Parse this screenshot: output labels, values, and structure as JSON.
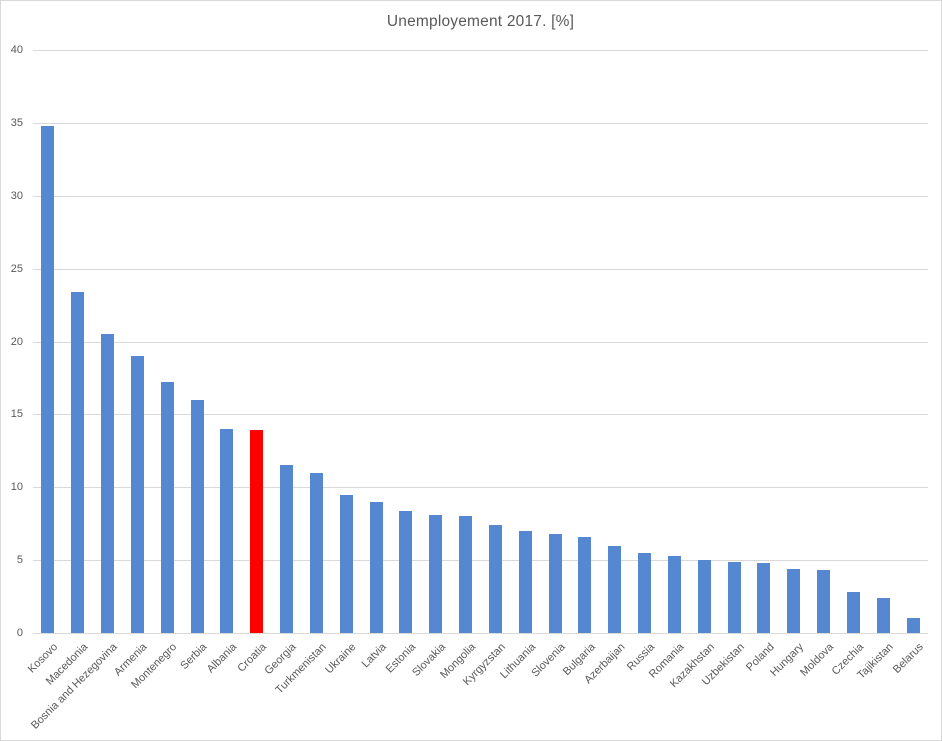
{
  "title": "Unemployement 2017. [%]",
  "chart_data": {
    "type": "bar",
    "title": "Unemployement 2017. [%]",
    "xlabel": "",
    "ylabel": "",
    "ylim": [
      0,
      40
    ],
    "yticks": [
      0,
      5,
      10,
      15,
      20,
      25,
      30,
      35,
      40
    ],
    "grid": true,
    "legend": "none",
    "categories": [
      "Kosovo",
      "Macedonia",
      "Bosnia and Hezegovina",
      "Armenia",
      "Montenegro",
      "Serbia",
      "Albania",
      "Croatia",
      "Georgia",
      "Turkmenistan",
      "Ukraine",
      "Latvia",
      "Estonia",
      "Slovakia",
      "Mongolia",
      "Kyrgyzstan",
      "Lithuania",
      "Slovenia",
      "Bulgaria",
      "Azerbaijan",
      "Russia",
      "Romania",
      "Kazakhstan",
      "Uzbekistan",
      "Poland",
      "Hungary",
      "Moldova",
      "Czechia",
      "Tajikistan",
      "Belarus"
    ],
    "values": [
      34.8,
      23.4,
      20.5,
      19.0,
      17.2,
      16.0,
      14.0,
      13.9,
      11.5,
      11.0,
      9.5,
      9.0,
      8.4,
      8.1,
      8.0,
      7.4,
      7.0,
      6.8,
      6.6,
      6.0,
      5.5,
      5.3,
      5.0,
      4.9,
      4.8,
      4.4,
      4.3,
      2.8,
      2.4,
      1.0
    ],
    "highlight": {
      "category": "Croatia",
      "index": 7,
      "color": "#ff0000"
    },
    "bar_color": "#5588d0"
  },
  "colors": {
    "bar_default": "#5588d0",
    "bar_highlight": "#ff0000",
    "gridline": "#d9d9d9",
    "axis_line": "#d9d9d9",
    "text": "#595959",
    "background": "#ffffff",
    "frame_border": "#d9d9d9"
  }
}
